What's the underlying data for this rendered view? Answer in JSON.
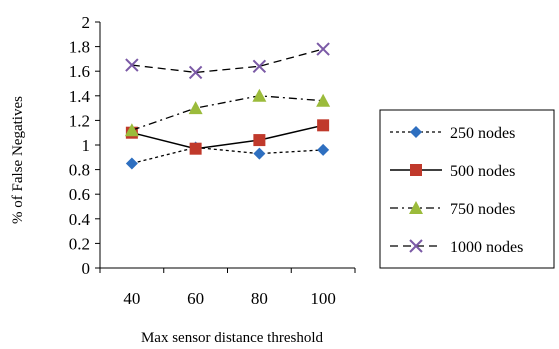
{
  "chart_data": {
    "type": "line",
    "xlabel": "Max sensor distance threshold",
    "ylabel": "% of False Negatives",
    "categories": [
      "40",
      "60",
      "80",
      "100"
    ],
    "ylim": [
      0,
      2
    ],
    "yticks": [
      "0",
      "0.2",
      "0.4",
      "0.6",
      "0.8",
      "1",
      "1.2",
      "1.4",
      "1.6",
      "1.8",
      "2"
    ],
    "grid": false,
    "legend_position": "right",
    "series": [
      {
        "name": "250 nodes",
        "values": [
          0.85,
          0.98,
          0.93,
          0.96
        ],
        "color": "#2e6fc0",
        "marker": "diamond",
        "dash": "dotted"
      },
      {
        "name": "500 nodes",
        "values": [
          1.1,
          0.97,
          1.04,
          1.16
        ],
        "color": "#c0392b",
        "marker": "square",
        "dash": "solid"
      },
      {
        "name": "750 nodes",
        "values": [
          1.12,
          1.3,
          1.4,
          1.36
        ],
        "color": "#9bbb3b",
        "marker": "triangle",
        "dash": "dashdot"
      },
      {
        "name": "1000 nodes",
        "values": [
          1.65,
          1.59,
          1.64,
          1.78
        ],
        "color": "#7b5aa6",
        "marker": "x",
        "dash": "dashed"
      }
    ]
  }
}
